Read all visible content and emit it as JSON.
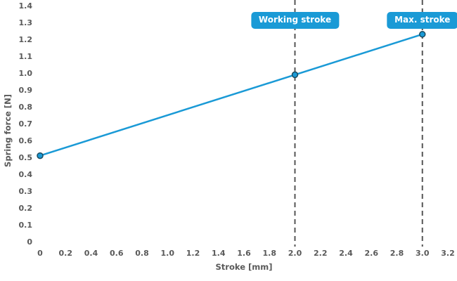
{
  "chart_data": {
    "type": "line",
    "title": "",
    "xlabel": "Stroke [mm]",
    "ylabel": "Spring force [N]",
    "xlim": [
      0,
      3.2
    ],
    "ylim": [
      0,
      1.4
    ],
    "grid": false,
    "legend": "none",
    "x_ticks": [
      0,
      0.2,
      0.4,
      0.6,
      0.8,
      1.0,
      1.2,
      1.4,
      1.6,
      1.8,
      2.0,
      2.2,
      2.4,
      2.6,
      2.8,
      3.0,
      3.2
    ],
    "x_tick_labels": [
      "0",
      "0.2",
      "0.4",
      "0.6",
      "0.8",
      "1.0",
      "1.2",
      "1.4",
      "1.6",
      "1.8",
      "2.0",
      "2.2",
      "2.4",
      "2.6",
      "2.8",
      "3.0",
      "3.2"
    ],
    "y_ticks": [
      0,
      0.1,
      0.2,
      0.3,
      0.4,
      0.5,
      0.6,
      0.7,
      0.8,
      0.9,
      1.0,
      1.1,
      1.2,
      1.3,
      1.4
    ],
    "y_tick_labels": [
      "0",
      "0.1",
      "0.2",
      "0.3",
      "0.4",
      "0.5",
      "0.6",
      "0.7",
      "0.8",
      "0.9",
      "1.0",
      "1.1",
      "1.2",
      "1.3",
      "1.4"
    ],
    "series": [
      {
        "name": "spring-force-line",
        "x": [
          0,
          2.0,
          3.0
        ],
        "y": [
          0.51,
          0.99,
          1.23
        ]
      }
    ],
    "annotations": [
      {
        "x": 2.0,
        "label": "Working stroke"
      },
      {
        "x": 3.0,
        "label": "Max. stroke"
      }
    ],
    "colors": {
      "line": "#1a9ad6",
      "marker_fill": "#1a9ad6",
      "marker_edge": "#1b4a5e",
      "badge_bg": "#1a9ad6",
      "badge_text": "#ffffff",
      "tick_text": "#595959",
      "dashed_line": "#555555"
    }
  }
}
